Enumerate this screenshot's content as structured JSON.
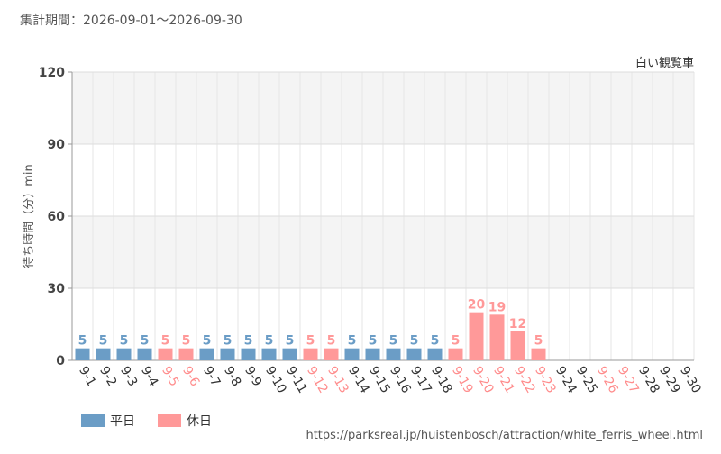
{
  "chart_data": {
    "type": "bar",
    "title": "集計期間：2026-09-01～2026-09-30",
    "subtitle": "白い観覧車",
    "y_label": "待ち時間（分）min",
    "source": "https://parksreal.jp/huistenbosch/attraction/white_ferris_wheel.html",
    "categories": [
      "9-1",
      "9-2",
      "9-3",
      "9-4",
      "9-5",
      "9-6",
      "9-7",
      "9-8",
      "9-9",
      "9-10",
      "9-11",
      "9-12",
      "9-13",
      "9-14",
      "9-15",
      "9-16",
      "9-17",
      "9-18",
      "9-19",
      "9-20",
      "9-21",
      "9-22",
      "9-23",
      "9-24",
      "9-25",
      "9-26",
      "9-27",
      "9-28",
      "9-29",
      "9-30"
    ],
    "category_label_colors": [
      "#333333",
      "#333333",
      "#333333",
      "#333333",
      "#ff8c8c",
      "#ff8c8c",
      "#333333",
      "#333333",
      "#333333",
      "#333333",
      "#333333",
      "#ff8c8c",
      "#ff8c8c",
      "#333333",
      "#333333",
      "#333333",
      "#333333",
      "#333333",
      "#ff8c8c",
      "#ff8c8c",
      "#ff8c8c",
      "#ff8c8c",
      "#ff8c8c",
      "#333333",
      "#333333",
      "#ff8c8c",
      "#ff8c8c",
      "#333333",
      "#333333",
      "#333333"
    ],
    "series": [
      {
        "name": "平日",
        "color": "#6b9dc6",
        "values": [
          5,
          5,
          5,
          5,
          null,
          null,
          5,
          5,
          5,
          5,
          5,
          null,
          null,
          5,
          5,
          5,
          5,
          5,
          null,
          null,
          null,
          null,
          null,
          null,
          null,
          null,
          null,
          null,
          null,
          null
        ]
      },
      {
        "name": "休日",
        "color": "#ff9999",
        "values": [
          null,
          null,
          null,
          null,
          5,
          5,
          null,
          null,
          null,
          null,
          null,
          5,
          5,
          null,
          null,
          null,
          null,
          null,
          5,
          20,
          19,
          12,
          5,
          null,
          null,
          null,
          null,
          null,
          null,
          null
        ]
      }
    ],
    "ylim": [
      0,
      120
    ],
    "yticks": [
      0,
      30,
      60,
      90,
      120
    ],
    "grid": true
  }
}
